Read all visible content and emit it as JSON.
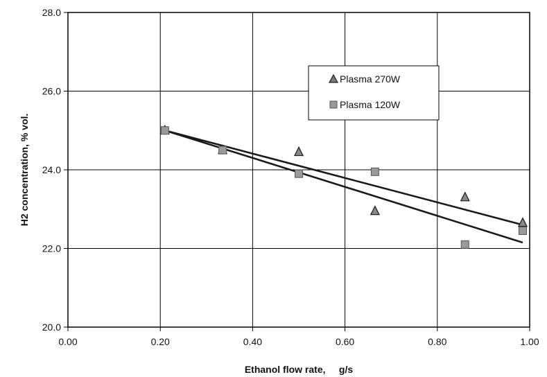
{
  "chart_data": {
    "type": "scatter",
    "title": "",
    "xlabel": "Ethanol flow rate,     g/s",
    "ylabel": "H2 concentration, % vol.",
    "xlim": [
      0.0,
      1.0
    ],
    "ylim": [
      20.0,
      28.0
    ],
    "x_ticks": [
      "0.00",
      "0.20",
      "0.40",
      "0.60",
      "0.80",
      "1.00"
    ],
    "y_ticks": [
      "20.0",
      "22.0",
      "24.0",
      "26.0",
      "28.0"
    ],
    "grid": true,
    "legend_position": "top-right",
    "series": [
      {
        "name": "Plasma 270W",
        "marker": "triangle",
        "color": "#444444",
        "points": [
          [
            0.21,
            25.0
          ],
          [
            0.335,
            24.5
          ],
          [
            0.5,
            24.45
          ],
          [
            0.665,
            22.95
          ],
          [
            0.86,
            23.3
          ],
          [
            0.985,
            22.65
          ]
        ],
        "trend": [
          [
            0.21,
            25.0
          ],
          [
            0.985,
            22.6
          ]
        ]
      },
      {
        "name": "Plasma 120W",
        "marker": "square",
        "color": "#8a8a8a",
        "points": [
          [
            0.21,
            25.0
          ],
          [
            0.335,
            24.5
          ],
          [
            0.5,
            23.9
          ],
          [
            0.665,
            23.95
          ],
          [
            0.86,
            22.1
          ],
          [
            0.985,
            22.45
          ]
        ],
        "trend": [
          [
            0.21,
            25.0
          ],
          [
            0.985,
            22.15
          ]
        ]
      }
    ]
  }
}
